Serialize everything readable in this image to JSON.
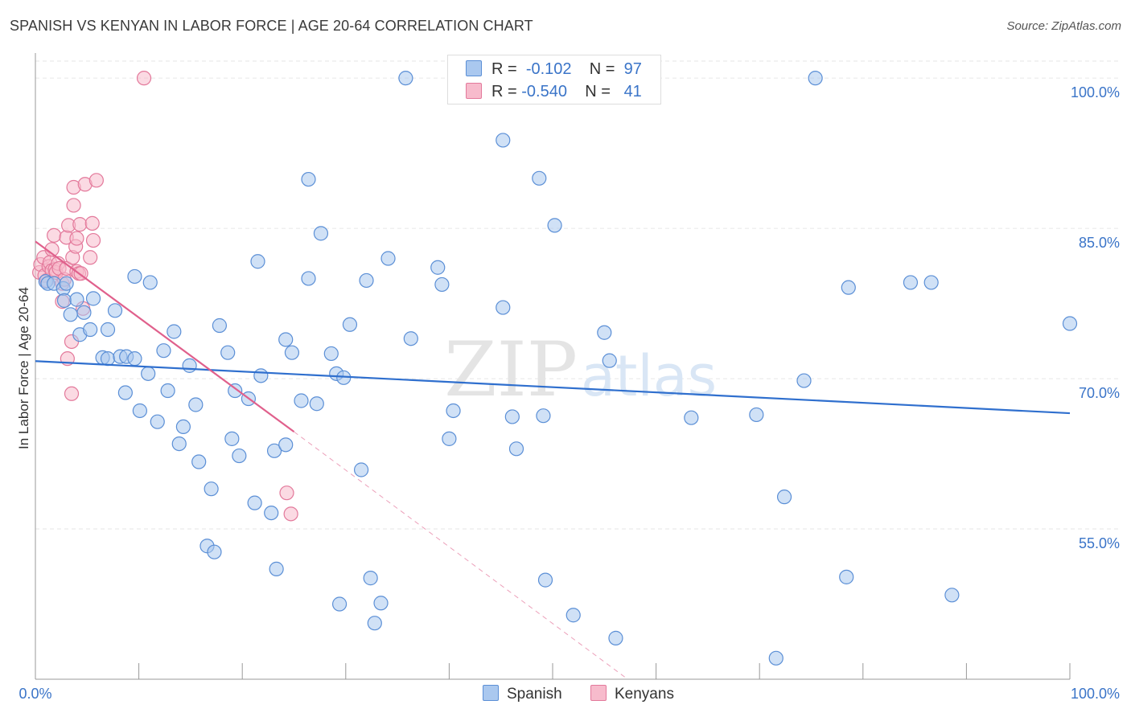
{
  "header": {
    "title": "SPANISH VS KENYAN IN LABOR FORCE | AGE 20-64 CORRELATION CHART",
    "source": "Source: ZipAtlas.com"
  },
  "legend": {
    "r_label": "R =",
    "n_label": "N =",
    "spanish": {
      "r": "-0.102",
      "n": "97"
    },
    "kenyans": {
      "r": "-0.540",
      "n": "41"
    }
  },
  "bottom_legend": {
    "spanish": "Spanish",
    "kenyans": "Kenyans"
  },
  "watermark": {
    "zip": "ZIP",
    "atlas": "atlas"
  },
  "colors": {
    "spanish_fill": "#aac8ef",
    "spanish_stroke": "#5b8fd6",
    "spanish_line": "#2f6fce",
    "kenyan_fill": "#f7bbcc",
    "kenyan_stroke": "#e3799b",
    "kenyan_line": "#e0608c",
    "axis_label": "#3a74c8"
  },
  "chart_data": {
    "type": "scatter",
    "title": "SPANISH VS KENYAN IN LABOR FORCE | AGE 20-64 CORRELATION CHART",
    "xlabel": "",
    "ylabel": "In Labor Force | Age 20-64",
    "xlim": [
      0,
      100
    ],
    "ylim": [
      40,
      102.5
    ],
    "x_tick_labels": [
      "0.0%",
      "100.0%"
    ],
    "y_ticks": [
      55,
      70,
      85,
      100
    ],
    "y_tick_labels": [
      "55.0%",
      "70.0%",
      "85.0%",
      "100.0%"
    ],
    "grid": true,
    "legend_position": "top-center",
    "series": [
      {
        "name": "Spanish",
        "R": -0.102,
        "N": 97,
        "trend": {
          "x": [
            0,
            100
          ],
          "y": [
            71.75,
            66.55
          ]
        },
        "points": [
          [
            1.0,
            79.7
          ],
          [
            1.2,
            79.5
          ],
          [
            1.8,
            79.5
          ],
          [
            2.7,
            79.0
          ],
          [
            3.0,
            79.5
          ],
          [
            2.8,
            77.8
          ],
          [
            3.4,
            76.4
          ],
          [
            4.0,
            77.9
          ],
          [
            4.3,
            74.4
          ],
          [
            4.7,
            76.6
          ],
          [
            5.3,
            74.9
          ],
          [
            5.6,
            78.0
          ],
          [
            6.5,
            72.1
          ],
          [
            7.0,
            72.0
          ],
          [
            7.0,
            74.9
          ],
          [
            7.7,
            76.8
          ],
          [
            8.2,
            72.2
          ],
          [
            8.8,
            72.2
          ],
          [
            8.7,
            68.6
          ],
          [
            9.6,
            72.0
          ],
          [
            9.6,
            80.2
          ],
          [
            10.1,
            66.8
          ],
          [
            10.9,
            70.5
          ],
          [
            11.1,
            79.6
          ],
          [
            11.8,
            65.7
          ],
          [
            12.4,
            72.8
          ],
          [
            12.8,
            68.8
          ],
          [
            13.4,
            74.7
          ],
          [
            13.9,
            63.5
          ],
          [
            14.3,
            65.2
          ],
          [
            14.9,
            71.3
          ],
          [
            15.5,
            67.4
          ],
          [
            15.8,
            61.7
          ],
          [
            16.6,
            53.3
          ],
          [
            17.0,
            59.0
          ],
          [
            17.3,
            52.7
          ],
          [
            17.8,
            75.3
          ],
          [
            18.6,
            72.6
          ],
          [
            19.0,
            64.0
          ],
          [
            19.3,
            68.8
          ],
          [
            19.7,
            62.3
          ],
          [
            20.6,
            68.0
          ],
          [
            21.2,
            57.6
          ],
          [
            21.5,
            81.7
          ],
          [
            21.8,
            70.3
          ],
          [
            22.8,
            56.6
          ],
          [
            23.1,
            62.8
          ],
          [
            23.3,
            51.0
          ],
          [
            24.2,
            63.4
          ],
          [
            24.2,
            73.9
          ],
          [
            24.8,
            72.6
          ],
          [
            25.7,
            67.8
          ],
          [
            26.4,
            89.9
          ],
          [
            26.4,
            80.0
          ],
          [
            27.2,
            67.5
          ],
          [
            27.6,
            84.5
          ],
          [
            28.6,
            72.5
          ],
          [
            29.1,
            70.5
          ],
          [
            29.4,
            47.5
          ],
          [
            29.8,
            70.1
          ],
          [
            30.4,
            75.4
          ],
          [
            31.5,
            60.9
          ],
          [
            32.0,
            79.8
          ],
          [
            32.4,
            50.1
          ],
          [
            32.8,
            45.6
          ],
          [
            33.4,
            47.6
          ],
          [
            34.1,
            82.0
          ],
          [
            35.8,
            100.0
          ],
          [
            36.3,
            74.0
          ],
          [
            38.9,
            81.1
          ],
          [
            39.3,
            79.4
          ],
          [
            40.0,
            64.0
          ],
          [
            40.4,
            66.8
          ],
          [
            45.2,
            77.1
          ],
          [
            45.2,
            93.8
          ],
          [
            46.1,
            66.2
          ],
          [
            46.5,
            63.0
          ],
          [
            48.7,
            90.0
          ],
          [
            49.1,
            66.3
          ],
          [
            49.3,
            49.9
          ],
          [
            50.2,
            85.3
          ],
          [
            52.0,
            46.4
          ],
          [
            55.0,
            74.6
          ],
          [
            55.5,
            71.8
          ],
          [
            56.1,
            44.1
          ],
          [
            63.4,
            66.1
          ],
          [
            69.7,
            66.4
          ],
          [
            71.6,
            42.1
          ],
          [
            72.4,
            58.2
          ],
          [
            74.3,
            69.8
          ],
          [
            75.4,
            100.0
          ],
          [
            78.6,
            79.1
          ],
          [
            78.4,
            50.2
          ],
          [
            84.6,
            79.6
          ],
          [
            86.6,
            79.6
          ],
          [
            88.6,
            48.4
          ],
          [
            100.0,
            75.5
          ]
        ]
      },
      {
        "name": "Kenyans",
        "R": -0.54,
        "N": 41,
        "trend": {
          "x": [
            0,
            25
          ],
          "y": [
            83.7,
            64.7
          ]
        },
        "trend_extension": {
          "x": [
            25,
            57
          ],
          "y": [
            64.7,
            40.2
          ]
        },
        "points": [
          [
            0.4,
            80.6
          ],
          [
            0.5,
            81.4
          ],
          [
            0.8,
            82.1
          ],
          [
            0.9,
            80.3
          ],
          [
            1.1,
            79.8
          ],
          [
            1.3,
            81.2
          ],
          [
            1.4,
            81.6
          ],
          [
            1.6,
            82.9
          ],
          [
            1.6,
            80.8
          ],
          [
            1.8,
            84.3
          ],
          [
            1.9,
            80.9
          ],
          [
            2.0,
            80.6
          ],
          [
            2.2,
            81.5
          ],
          [
            2.3,
            81.0
          ],
          [
            2.6,
            79.5
          ],
          [
            2.6,
            77.7
          ],
          [
            2.8,
            79.9
          ],
          [
            3.0,
            81.0
          ],
          [
            3.0,
            84.1
          ],
          [
            3.1,
            72.0
          ],
          [
            3.2,
            85.3
          ],
          [
            3.5,
            73.7
          ],
          [
            3.5,
            68.5
          ],
          [
            3.6,
            82.1
          ],
          [
            3.7,
            89.1
          ],
          [
            3.7,
            87.3
          ],
          [
            3.9,
            83.2
          ],
          [
            4.0,
            84.0
          ],
          [
            4.0,
            80.7
          ],
          [
            4.2,
            80.5
          ],
          [
            4.3,
            85.4
          ],
          [
            4.4,
            80.5
          ],
          [
            4.6,
            77.0
          ],
          [
            4.8,
            89.4
          ],
          [
            5.3,
            82.1
          ],
          [
            5.5,
            85.5
          ],
          [
            5.6,
            83.8
          ],
          [
            5.9,
            89.8
          ],
          [
            10.5,
            100.0
          ],
          [
            24.3,
            58.6
          ],
          [
            24.7,
            56.5
          ]
        ]
      }
    ]
  }
}
